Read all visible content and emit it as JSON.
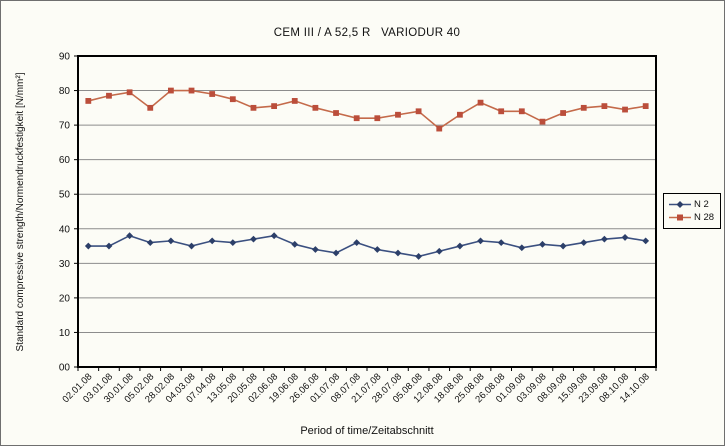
{
  "chart_data": {
    "type": "line",
    "title": "CEM III / A 52,5 R   VARIODUR 40",
    "xlabel": "Period of time/Zeitabschnitt",
    "ylabel": "Standard compressive strength/Normendruckfestigkeit [N/mm²]",
    "categories": [
      "02.01.08",
      "03.01.08",
      "30.01.08",
      "05.02.08",
      "28.02.08",
      "04.03.08",
      "07.04.08",
      "13.05.08",
      "20.05.08",
      "02.06.08",
      "19.06.08",
      "26.06.08",
      "01.07.08",
      "08.07.08",
      "21.07.08",
      "28.07.08",
      "05.08.08",
      "12.08.08",
      "18.08.08",
      "25.08.08",
      "26.08.08",
      "01.09.08",
      "03.09.08",
      "08.09.08",
      "15.09.08",
      "23.09.08",
      "08.10.08",
      "14.10.08"
    ],
    "series": [
      {
        "name": "N 2",
        "marker": "diamond",
        "marker_color": "#2c3f69",
        "line_color": "#3b5080",
        "values": [
          35,
          35,
          38,
          36,
          36.5,
          35,
          36.5,
          36,
          37,
          38,
          35.5,
          34,
          33,
          36,
          34,
          33,
          32,
          33.5,
          35,
          36.5,
          36,
          34.5,
          35.5,
          35,
          36,
          37,
          37.5,
          36.5
        ]
      },
      {
        "name": "N 28",
        "marker": "square",
        "marker_color": "#bb4e3b",
        "line_color": "#c46a4a",
        "values": [
          77,
          78.5,
          79.5,
          75,
          80,
          80,
          79,
          77.5,
          75,
          75.5,
          77,
          75,
          73.5,
          72,
          72,
          73,
          74,
          69,
          73,
          76.5,
          74,
          74,
          71,
          73.5,
          75,
          75.5,
          74.5,
          75.5
        ]
      }
    ],
    "ylim": [
      0,
      90
    ],
    "y_tick_step": 10,
    "y_tick_labels": [
      "00",
      "10",
      "20",
      "30",
      "40",
      "50",
      "60",
      "70",
      "80",
      "90"
    ],
    "grid": true,
    "legend_position": "right",
    "colors": {
      "gridline": "#8c8c8c",
      "axis": "#000000",
      "background": "#fcfcf6"
    }
  }
}
